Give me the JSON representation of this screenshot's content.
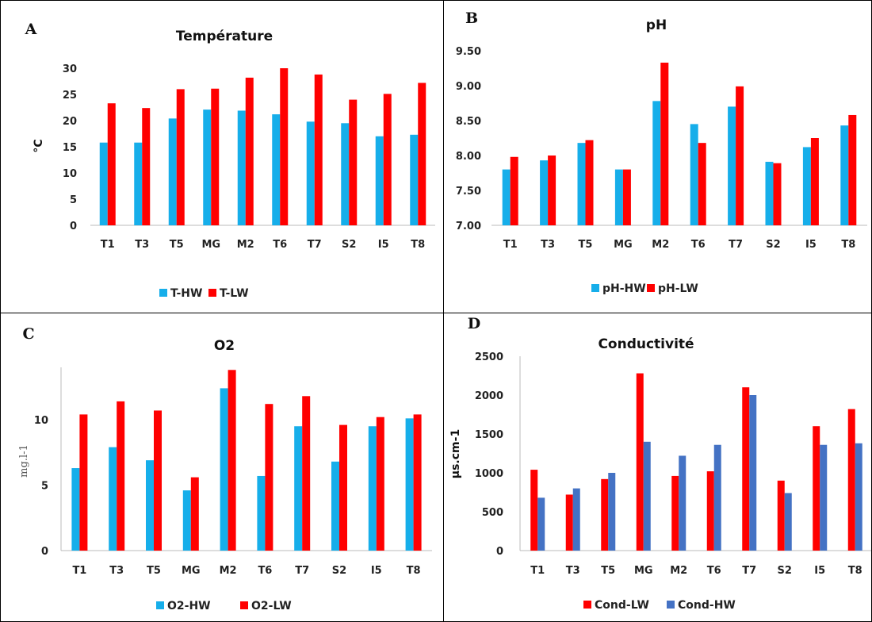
{
  "chart_data": [
    {
      "panel": "A",
      "type": "bar",
      "title": "Température",
      "ylabel": "°C",
      "xlabel": "",
      "categories": [
        "T1",
        "T3",
        "T5",
        "MG",
        "M2",
        "T6",
        "T7",
        "S2",
        "I5",
        "T8"
      ],
      "yticks": [
        "0",
        "5",
        "10",
        "15",
        "20",
        "25",
        "30"
      ],
      "ylim": [
        0,
        30
      ],
      "series": [
        {
          "name": "T-HW",
          "color": "#16AEEA",
          "values": [
            15.8,
            15.8,
            20.4,
            22.1,
            21.9,
            21.2,
            19.8,
            19.5,
            17.0,
            17.3
          ]
        },
        {
          "name": "T-LW",
          "color": "#FF0000",
          "values": [
            23.3,
            22.4,
            26.0,
            26.1,
            28.2,
            30.0,
            28.8,
            24.0,
            25.1,
            27.2
          ]
        }
      ],
      "legend": "bottom",
      "grid": false
    },
    {
      "panel": "B",
      "type": "bar",
      "title": "pH",
      "ylabel": "",
      "xlabel": "",
      "categories": [
        "T1",
        "T3",
        "T5",
        "MG",
        "M2",
        "T6",
        "T7",
        "S2",
        "I5",
        "T8"
      ],
      "yticks": [
        "7.00",
        "7.50",
        "8.00",
        "8.50",
        "9.00",
        "9.50"
      ],
      "ylim": [
        7.0,
        9.5
      ],
      "series": [
        {
          "name": "pH-HW",
          "color": "#16AEEA",
          "values": [
            7.8,
            7.93,
            8.18,
            7.8,
            8.78,
            8.45,
            8.7,
            7.91,
            8.12,
            8.43
          ]
        },
        {
          "name": "pH-LW",
          "color": "#FF0000",
          "values": [
            7.98,
            8.0,
            8.22,
            7.8,
            9.33,
            8.18,
            8.99,
            7.89,
            8.25,
            8.58
          ]
        }
      ],
      "legend": "bottom",
      "grid": false
    },
    {
      "panel": "C",
      "type": "bar",
      "title": "O2",
      "ylabel": "mg.l-1",
      "xlabel": "",
      "categories": [
        "T1",
        "T3",
        "T5",
        "MG",
        "M2",
        "T6",
        "T7",
        "S2",
        "I5",
        "T8"
      ],
      "yticks": [
        "0",
        "5",
        "10"
      ],
      "ylim": [
        0,
        14
      ],
      "series": [
        {
          "name": "O2-HW",
          "color": "#16AEEA",
          "values": [
            6.3,
            7.9,
            6.9,
            4.6,
            12.4,
            5.7,
            9.5,
            6.8,
            9.5,
            10.1
          ]
        },
        {
          "name": "O2-LW",
          "color": "#FF0000",
          "values": [
            10.4,
            11.4,
            10.7,
            5.6,
            13.8,
            11.2,
            11.8,
            9.6,
            10.2,
            10.4
          ]
        }
      ],
      "legend": "bottom",
      "grid": false
    },
    {
      "panel": "D",
      "type": "bar",
      "title": "Conductivité",
      "ylabel": "µs.cm-1",
      "xlabel": "",
      "categories": [
        "T1",
        "T3",
        "T5",
        "MG",
        "M2",
        "T6",
        "T7",
        "S2",
        "I5",
        "T8"
      ],
      "yticks": [
        "0",
        "500",
        "1000",
        "1500",
        "2000",
        "2500"
      ],
      "ylim": [
        0,
        2500
      ],
      "series": [
        {
          "name": "Cond-LW",
          "color": "#FF0000",
          "values": [
            1040,
            720,
            920,
            2280,
            960,
            1020,
            2100,
            900,
            1600,
            1820
          ]
        },
        {
          "name": "Cond-HW",
          "color": "#4472C4",
          "values": [
            680,
            800,
            1000,
            1400,
            1220,
            1360,
            2000,
            740,
            1360,
            1380
          ]
        }
      ],
      "legend": "bottom",
      "grid": false
    }
  ]
}
